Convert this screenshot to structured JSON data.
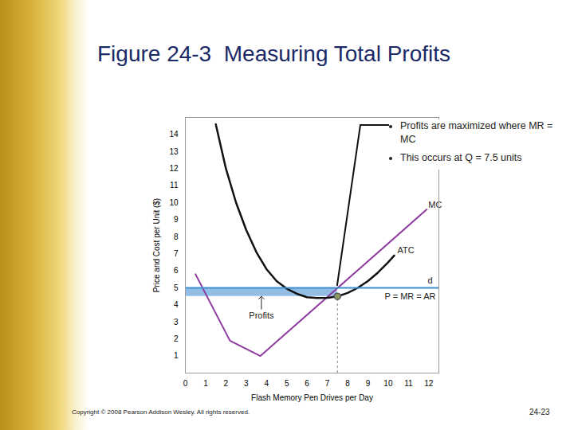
{
  "chart_data": {
    "type": "line",
    "title": "Figure 24-3  Measuring Total Profits",
    "x_label": "Flash Memory Pen Drives per Day",
    "y_label": "Price and Cost per Unit ($)",
    "xlim": [
      0,
      12.5
    ],
    "ylim": [
      0,
      15
    ],
    "xticks": [
      0,
      1,
      2,
      3,
      4,
      5,
      6,
      7,
      8,
      9,
      10,
      11,
      12
    ],
    "yticks": [
      1,
      2,
      3,
      4,
      5,
      6,
      7,
      8,
      9,
      10,
      11,
      12,
      13,
      14
    ],
    "grid": false,
    "series": [
      {
        "name": "MC",
        "color": "#8e3a9e",
        "x": [
          0.5,
          2.2,
          3.7,
          11.9
        ],
        "values": [
          5.8,
          1.9,
          1.0,
          9.6
        ]
      },
      {
        "name": "ATC",
        "color": "#111111",
        "x": [
          1.5,
          2,
          2.5,
          3,
          3.5,
          4,
          4.5,
          5,
          5.5,
          6,
          6.5,
          7,
          7.5,
          8,
          8.5,
          9,
          9.5,
          10,
          10.3
        ],
        "values": [
          14.6,
          12,
          10,
          8.4,
          7.1,
          6.1,
          5.4,
          4.95,
          4.65,
          4.45,
          4.4,
          4.42,
          4.5,
          4.7,
          5,
          5.4,
          5.9,
          6.5,
          6.9
        ]
      },
      {
        "name": "d",
        "label": "P = MR = AR",
        "color": "#3d8fd1",
        "x": [
          0,
          12.5
        ],
        "values": [
          5,
          5
        ]
      }
    ],
    "profit_area": {
      "name": "Profits",
      "color": "#7fb2e0",
      "x": [
        0,
        7.5
      ],
      "y_low": 4.5,
      "y_high": 5
    },
    "optimum": {
      "x": 7.5,
      "y": 4.5,
      "color": "#8a9a5b"
    },
    "annotation": [
      "Profits are maximized where MR = MC",
      "This occurs at Q = 7.5 units"
    ],
    "footer": "Copyright © 2008 Pearson Addison Wesley. All rights reserved.",
    "page_number": "24-23"
  }
}
